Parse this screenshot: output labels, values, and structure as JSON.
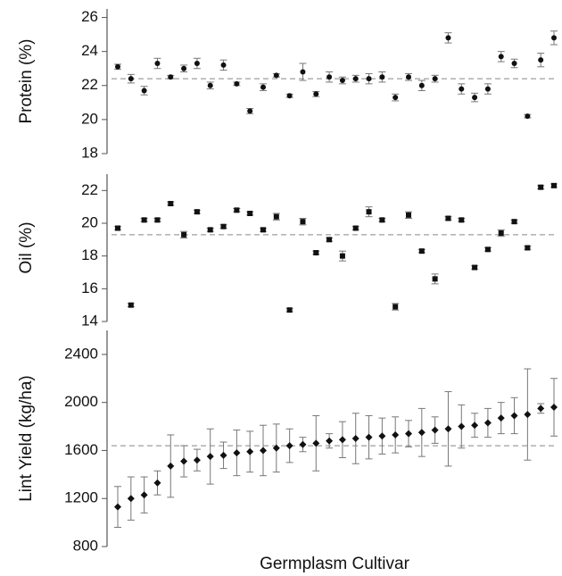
{
  "chart_data": [
    {
      "type": "scatter",
      "ylabel": "Protein (%)",
      "marker": "circle",
      "color": "#111111",
      "categories": [
        null,
        null,
        null,
        null,
        null,
        null,
        null,
        null,
        null,
        null,
        null,
        null,
        null,
        null,
        null,
        null,
        null,
        null,
        null,
        null,
        null,
        null,
        null,
        null,
        null,
        null,
        null,
        null,
        null,
        null,
        null,
        null,
        null,
        null
      ],
      "values": [
        23.1,
        22.4,
        21.7,
        23.3,
        22.5,
        23.0,
        23.3,
        22.0,
        23.2,
        22.1,
        20.5,
        21.9,
        22.6,
        21.4,
        22.8,
        21.5,
        22.5,
        22.3,
        22.4,
        22.4,
        22.5,
        21.3,
        22.5,
        22.0,
        22.4,
        24.8,
        21.8,
        21.3,
        21.8,
        23.7,
        23.3,
        20.2,
        23.5,
        24.8
      ],
      "errors": [
        0.15,
        0.25,
        0.25,
        0.3,
        0.1,
        0.2,
        0.3,
        0.2,
        0.3,
        0.1,
        0.15,
        0.2,
        0.1,
        0.1,
        0.5,
        0.15,
        0.3,
        0.2,
        0.2,
        0.3,
        0.3,
        0.2,
        0.2,
        0.3,
        0.2,
        0.3,
        0.3,
        0.25,
        0.3,
        0.3,
        0.25,
        0.1,
        0.4,
        0.4
      ],
      "reference_line": 22.4,
      "ylim": [
        18,
        26.5
      ],
      "yticks": [
        18,
        20,
        22,
        24,
        26
      ]
    },
    {
      "type": "scatter",
      "ylabel": "Oil (%)",
      "marker": "square",
      "color": "#111111",
      "categories": [
        null,
        null,
        null,
        null,
        null,
        null,
        null,
        null,
        null,
        null,
        null,
        null,
        null,
        null,
        null,
        null,
        null,
        null,
        null,
        null,
        null,
        null,
        null,
        null,
        null,
        null,
        null,
        null,
        null,
        null,
        null,
        null,
        null,
        null
      ],
      "values": [
        19.7,
        15.0,
        20.2,
        20.2,
        21.2,
        19.3,
        20.7,
        19.6,
        19.8,
        20.8,
        20.6,
        19.6,
        20.4,
        14.7,
        20.1,
        18.2,
        19.0,
        18.0,
        19.7,
        20.7,
        20.2,
        14.9,
        20.5,
        18.3,
        16.6,
        20.3,
        20.2,
        17.3,
        18.4,
        19.4,
        20.1,
        18.5,
        22.2,
        22.3
      ],
      "errors": [
        0.1,
        0.1,
        0.1,
        0.1,
        0.1,
        0.2,
        0.1,
        0.1,
        0.1,
        0.1,
        0.1,
        0.1,
        0.2,
        0.1,
        0.2,
        0.1,
        0.1,
        0.3,
        0.1,
        0.3,
        0.1,
        0.2,
        0.2,
        0.1,
        0.3,
        0.1,
        0.1,
        0.1,
        0.1,
        0.2,
        0.1,
        0.1,
        0.1,
        0.1
      ],
      "reference_line": 19.3,
      "ylim": [
        14,
        23
      ],
      "yticks": [
        14,
        16,
        18,
        20,
        22
      ]
    },
    {
      "type": "scatter",
      "ylabel": "Lint Yield (kg/ha)",
      "xlabel": "Germplasm Cultivar",
      "marker": "diamond",
      "color": "#111111",
      "categories": [
        null,
        null,
        null,
        null,
        null,
        null,
        null,
        null,
        null,
        null,
        null,
        null,
        null,
        null,
        null,
        null,
        null,
        null,
        null,
        null,
        null,
        null,
        null,
        null,
        null,
        null,
        null,
        null,
        null,
        null,
        null,
        null,
        null,
        null
      ],
      "values": [
        1130,
        1200,
        1230,
        1330,
        1470,
        1510,
        1520,
        1550,
        1560,
        1580,
        1590,
        1600,
        1620,
        1640,
        1650,
        1660,
        1680,
        1690,
        1700,
        1710,
        1720,
        1730,
        1740,
        1750,
        1770,
        1780,
        1800,
        1810,
        1830,
        1870,
        1890,
        1900,
        1950,
        1960
      ],
      "errors": [
        170,
        180,
        150,
        100,
        260,
        130,
        90,
        230,
        110,
        190,
        170,
        210,
        200,
        140,
        60,
        230,
        60,
        150,
        210,
        180,
        150,
        150,
        110,
        200,
        110,
        310,
        180,
        100,
        120,
        130,
        150,
        380,
        40,
        240
      ],
      "reference_line": 1640,
      "ylim": [
        800,
        2600
      ],
      "yticks": [
        800,
        1200,
        1600,
        2000,
        2400
      ]
    }
  ]
}
